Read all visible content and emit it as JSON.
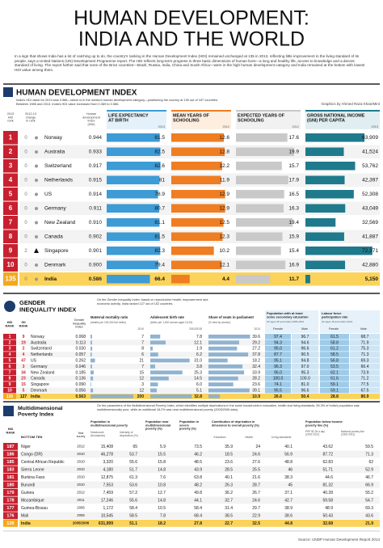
{
  "header": {
    "title": [
      "HUMAN DEVELOPMENT:",
      "INDIA AND THE WORLD"
    ],
    "intro": "In a sign that shows India has a lot of catching up to do, the country's ranking in the Human Development Index (HDI) remained unchanged at 135 in 2013, reflecting little improvement in the living standard of its people, says a United Nations (UN) Development Programme report. The HDI reflects long-term progress in three basic dimensions of human lives—a long and healthy life, access to knowledge and a decent standard of living. The report further said that none of the Brics countries—Brazil, Russia, India, China and South Africa—were in the high human development category and India remained at the bottom with lowest HDI value among them."
  },
  "hdi": {
    "title": "HUMAN DEVELOPMENT INDEX",
    "subtitle": "India's HDI value for 2013 was 0.586—which is in the medium human development category—positioning the country at 135 out of 187 countries. Between 1985 and 2013, India's HDI value increased from 0.369 to 0.586.",
    "credit": "Graphics by Ahmed Raza Khan/Mint",
    "columns": {
      "rank": [
        "2013",
        "HDI",
        "rank"
      ],
      "change": [
        "2012-13",
        "change",
        "in rank"
      ],
      "hdi": [
        "Human",
        "development",
        "index",
        "(HDI)"
      ],
      "life": [
        "LIFE EXPECTANCY",
        "AT BIRTH"
      ],
      "life_year": "2013",
      "mys": [
        "MEAN YEARS OF",
        "SCHOOLING"
      ],
      "mys_year": "2012",
      "eys": [
        "EXPECTED YEARS OF",
        "SCHOOLING"
      ],
      "eys_year": "2012",
      "gni": [
        "GROSS NATIONAL INCOME",
        "(GNI) PER CAPITA"
      ],
      "gni_year": "2013"
    },
    "rows": [
      [
        1,
        0,
        "Norway",
        0.944,
        81.5,
        12.6,
        17.6,
        {
          "value": 63909,
          "label": "63,909"
        }
      ],
      [
        2,
        0,
        "Australia",
        0.933,
        82.5,
        12.8,
        19.9,
        {
          "value": 41524,
          "label": "41,524"
        }
      ],
      [
        3,
        0,
        "Switzerland",
        0.917,
        82.6,
        12.2,
        15.7,
        {
          "value": 53762,
          "label": "53,762"
        }
      ],
      [
        4,
        0,
        "Netherlands",
        0.915,
        81,
        11.9,
        17.9,
        {
          "value": 42397,
          "label": "42,397"
        }
      ],
      [
        5,
        0,
        "US",
        0.914,
        78.9,
        12.9,
        16.5,
        {
          "value": 52308,
          "label": "52,308"
        }
      ],
      [
        6,
        0,
        "Germany",
        0.911,
        80.7,
        12.9,
        16.3,
        {
          "value": 43049,
          "label": "43,049"
        }
      ],
      [
        7,
        0,
        "New Zealand",
        {
          "value": 0.91,
          "label": "0.910"
        },
        81.1,
        12.5,
        19.4,
        {
          "value": 32569,
          "label": "32,569"
        }
      ],
      [
        8,
        0,
        "Canada",
        0.902,
        81.5,
        12.3,
        15.9,
        {
          "value": 41887,
          "label": "41,887"
        }
      ],
      [
        9,
        2,
        "Singapore",
        0.901,
        82.3,
        10.2,
        15.4,
        {
          "value": 72371,
          "label": "72,371"
        }
      ],
      [
        10,
        0,
        "Denmark",
        {
          "value": 0.9,
          "label": "0.900"
        },
        79.4,
        12.1,
        16.9,
        {
          "value": 42880,
          "label": "42,880"
        }
      ],
      [
        135,
        0,
        "India",
        0.586,
        66.4,
        4.4,
        11.7,
        {
          "value": 5150,
          "label": "5,150"
        }
      ]
    ]
  },
  "gii": {
    "title": [
      "GENDER",
      "INEQUALITY INDEX"
    ],
    "subtitle": "On the Gender Inequality Index, based on reproductive health, empowerment and economic activity, India ranked 127 out of 152 countries.",
    "columns": {
      "hdi_rank": [
        "HDI",
        "RANK"
      ],
      "gii_rank": [
        "GII",
        "RANK"
      ],
      "gii": [
        "Gender",
        "Inequality",
        "Index"
      ],
      "mmr": "Maternal mortality ratio",
      "mmr_note": "(deaths per 100,000 live births)",
      "mmr_year": "2010",
      "abr": "Adolescent birth rate",
      "abr_note": "(births per 1,000 women ages 15-19)",
      "abr_year": "2010/2015",
      "seats": "Share of seats in parliament",
      "seats_note": "(% held by women)",
      "seats_year": "2013",
      "sec": [
        "Population with at least",
        "some secondary education"
      ],
      "sec_note": "(% ages 25 and older) 2005-2012",
      "lab": [
        "Labour force",
        "participation rate"
      ],
      "lab_note": "(% ages 15 and older) 2012",
      "female": "Female",
      "male": "Male"
    },
    "rows": [
      [
        1,
        9,
        "Norway",
        0.068,
        7,
        7.8,
        39.6,
        97.4,
        96.7,
        61.5,
        68.7
      ],
      [
        2,
        19,
        "Australia",
        0.113,
        7,
        12.1,
        29.2,
        94.3,
        94.6,
        58.8,
        71.9
      ],
      [
        3,
        2,
        "Switzerland",
        {
          "value": 0.03,
          "label": "0.030"
        },
        8,
        1.9,
        27.2,
        {
          "value": 95,
          "label": "95.0"
        },
        96.6,
        61.2,
        75.3
      ],
      [
        4,
        4,
        "Netherlands",
        0.057,
        6,
        6.2,
        37.8,
        87.7,
        90.5,
        58.5,
        71.3
      ],
      [
        5,
        47,
        "US",
        0.262,
        21,
        {
          "value": 31,
          "label": "31.0"
        },
        18.2,
        95.1,
        94.8,
        56.8,
        69.3
      ],
      [
        6,
        3,
        "Germany",
        0.046,
        7,
        3.8,
        32.4,
        96.3,
        {
          "value": 97,
          "label": "97.0"
        },
        53.5,
        66.4
      ],
      [
        7,
        34,
        "New Zealand",
        0.185,
        15,
        25.3,
        33.9,
        {
          "value": 95,
          "label": "95.0"
        },
        95.3,
        62.1,
        73.9
      ],
      [
        8,
        23,
        "Canada",
        0.136,
        12,
        14.5,
        28.2,
        {
          "value": 100,
          "label": "100.0"
        },
        {
          "value": 100,
          "label": "100.0"
        },
        61.6,
        71.2
      ],
      [
        9,
        15,
        "Singapore",
        {
          "value": 0.09,
          "label": "0.090"
        },
        3,
        {
          "value": 6,
          "label": "6.0"
        },
        23.6,
        74.1,
        {
          "value": 81,
          "label": "81.0"
        },
        59.1,
        77.5
      ],
      [
        10,
        5,
        "Denmark",
        0.056,
        12,
        5.1,
        39.1,
        95.5,
        96.6,
        59.1,
        67.5
      ],
      [
        135,
        127,
        "India",
        0.563,
        200,
        32.8,
        10.9,
        26.6,
        50.4,
        28.8,
        80.9
      ]
    ]
  },
  "mpi": {
    "title": [
      "Multidimensional",
      "Poverty Index"
    ],
    "subtitle": "On the parameters of the Multidimensional Poverty Index, which identifies multiple deprivations in the same households in education, health and living standards, 55.3% of India's population was multidimensionally poor, while an additional 18.2% was near multidimensional poverty (2005/2006 data).",
    "columns": {
      "rank": [
        "HDI",
        "RANK"
      ],
      "country": "BOTTOM TEN",
      "year": [
        "Year",
        "survey"
      ],
      "pop": [
        "Population in",
        "multidimensional poverty"
      ],
      "headcount": [
        "Headcount",
        "(thousands)"
      ],
      "intensity": [
        "Intensity of",
        "deprivation (%)"
      ],
      "near": [
        "Population near",
        "multidimensional",
        "poverty (%)"
      ],
      "severe": [
        "Population in",
        "severe",
        "poverty (%)"
      ],
      "contrib": [
        "Contribution of deprivation in",
        "dimension to overall poverty (%)"
      ],
      "edu": "Education",
      "health": "Health",
      "living": "Living standards",
      "income": [
        "Population below income",
        "poverty line (%)"
      ],
      "ppp": [
        "PPP $1.25 a day",
        "(2002-2012)"
      ],
      "national": [
        "National poverty line",
        "(2002-2012)"
      ]
    },
    "rows": [
      [
        187,
        "Niger",
        2012,
        {
          "value": 15408,
          "label": "15,408"
        },
        65,
        5.9,
        73.5,
        35.9,
        24,
        40.1,
        43.62,
        59.5
      ],
      [
        186,
        "Congo (DR)",
        2010,
        {
          "value": 46278,
          "label": "46,278"
        },
        53.7,
        15.5,
        46.2,
        18.5,
        24.6,
        56.9,
        87.72,
        71.3
      ],
      [
        185,
        "Central African Republic",
        2010,
        {
          "value": 3320,
          "label": "3,320"
        },
        55.6,
        15.8,
        48.5,
        23.6,
        27.6,
        48.8,
        62.83,
        62
      ],
      [
        183,
        "Sierra Leone",
        2010,
        {
          "value": 4180,
          "label": "4,180"
        },
        51.7,
        14.8,
        43.9,
        28.5,
        25.5,
        46,
        51.71,
        52.9
      ],
      [
        181,
        "Burkina Faso",
        2010,
        {
          "value": 12875,
          "label": "12,875"
        },
        61.3,
        7.6,
        63.8,
        40.1,
        21.6,
        38.3,
        44.6,
        46.7
      ],
      [
        180,
        "Burundi",
        2010,
        {
          "value": 7553,
          "label": "7,553"
        },
        53.6,
        10.8,
        48.2,
        26.3,
        28.7,
        45,
        81.32,
        66.9
      ],
      [
        179,
        "Guinea",
        2012,
        {
          "value": 7459,
          "label": "7,459"
        },
        57.2,
        12.7,
        49.8,
        36.2,
        26.7,
        37.1,
        40.28,
        55.2
      ],
      [
        178,
        "Mozambique",
        2011,
        {
          "value": 17246,
          "label": "17,246"
        },
        55.6,
        14.8,
        44.1,
        32.7,
        24.6,
        42.7,
        59.58,
        54.7
      ],
      [
        177,
        "Guinea-Bissau",
        2006,
        {
          "value": 1172,
          "label": "1,172"
        },
        58.4,
        10.5,
        58.4,
        31.4,
        29.7,
        38.9,
        48.9,
        69.3
      ],
      [
        176,
        "Mali",
        2006,
        {
          "value": 10545,
          "label": "10,545"
        },
        58.5,
        7.8,
        68.4,
        38.5,
        22.9,
        38.6,
        50.43,
        43.6
      ],
      [
        135,
        "India",
        "2005/2006",
        {
          "value": 631999,
          "label": "631,999"
        },
        51.1,
        18.2,
        27.8,
        22.7,
        32.5,
        44.8,
        32.68,
        21.9
      ]
    ]
  },
  "footer": {
    "source": "Source: UNDP Human Development Report 2014"
  }
}
